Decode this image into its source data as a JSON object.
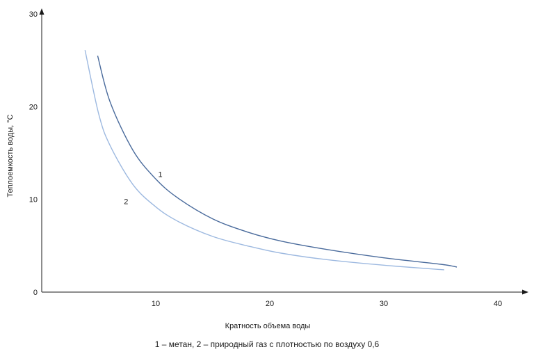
{
  "chart_data": {
    "type": "line",
    "xlabel": "Кратность объема воды",
    "ylabel": "Теплоемкость воды, °С",
    "xlim": [
      0,
      44
    ],
    "ylim": [
      0,
      30
    ],
    "x_ticks": [
      "10",
      "20",
      "30",
      "40"
    ],
    "y_ticks": [
      "0",
      "10",
      "20",
      "30"
    ],
    "grid": false,
    "series": [
      {
        "name": "1",
        "color": "#4a6b9c",
        "x": [
          4.9,
          6,
          8,
          10,
          12,
          15,
          18,
          21,
          25,
          30,
          35,
          36.4
        ],
        "y": [
          25.5,
          20.5,
          15.3,
          12.2,
          10.1,
          7.9,
          6.5,
          5.5,
          4.6,
          3.7,
          3.0,
          2.7
        ]
      },
      {
        "name": "2",
        "color": "#9db9e0",
        "x": [
          3.8,
          5,
          6,
          8,
          10,
          12,
          15,
          18,
          21,
          25,
          30,
          35.3
        ],
        "y": [
          26.1,
          19.2,
          15.8,
          11.6,
          9.2,
          7.6,
          6.0,
          5.0,
          4.2,
          3.5,
          2.9,
          2.4
        ]
      }
    ],
    "curve_labels": [
      {
        "text": "1",
        "x": 10.4,
        "y": 12.4
      },
      {
        "text": "2",
        "x": 7.4,
        "y": 9.5
      }
    ]
  },
  "caption": "1 – метан, 2 – природный газ с плотностью по воздуху 0,6"
}
